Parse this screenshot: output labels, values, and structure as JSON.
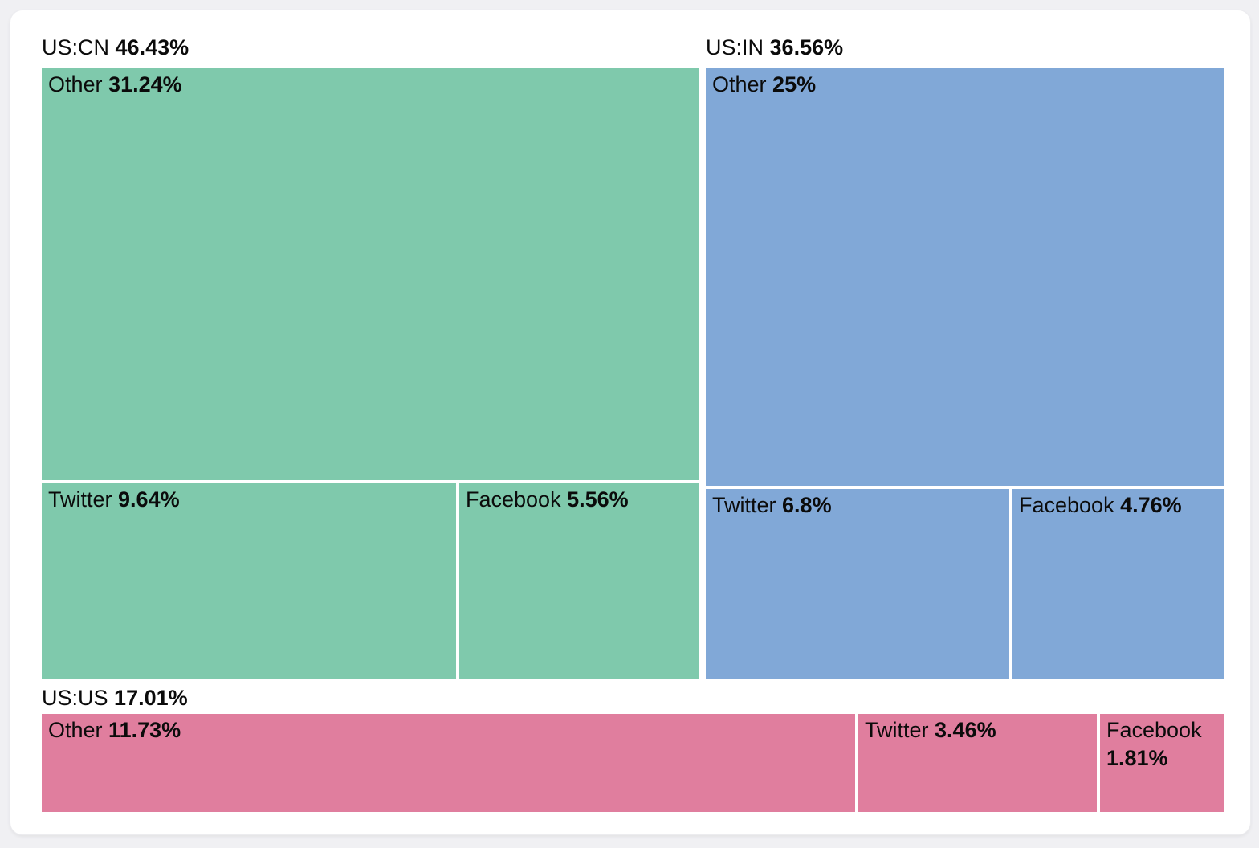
{
  "chart_data": {
    "type": "treemap",
    "title": "",
    "unit": "%",
    "legend": "none",
    "groups": [
      {
        "name": "US:CN",
        "value": 46.43,
        "label": "46.43%",
        "color": "#7fc9ac",
        "children": [
          {
            "name": "Other",
            "value": 31.24,
            "label": "31.24%"
          },
          {
            "name": "Twitter",
            "value": 9.64,
            "label": "9.64%"
          },
          {
            "name": "Facebook",
            "value": 5.56,
            "label": "5.56%"
          }
        ]
      },
      {
        "name": "US:IN",
        "value": 36.56,
        "label": "36.56%",
        "color": "#81a8d7",
        "children": [
          {
            "name": "Other",
            "value": 25,
            "label": "25%"
          },
          {
            "name": "Twitter",
            "value": 6.8,
            "label": "6.8%"
          },
          {
            "name": "Facebook",
            "value": 4.76,
            "label": "4.76%"
          }
        ]
      },
      {
        "name": "US:US",
        "value": 17.01,
        "label": "17.01%",
        "color": "#e07e9e",
        "children": [
          {
            "name": "Other",
            "value": 11.73,
            "label": "11.73%"
          },
          {
            "name": "Twitter",
            "value": 3.46,
            "label": "3.46%"
          },
          {
            "name": "Facebook",
            "value": 1.81,
            "label": "1.81%"
          }
        ]
      }
    ]
  }
}
